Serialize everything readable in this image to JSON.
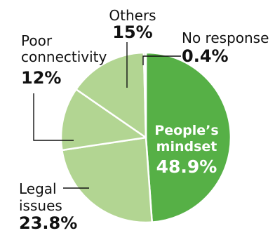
{
  "chart_data": {
    "type": "pie",
    "unit": "%",
    "slices": [
      {
        "name_lines": [
          "People’s",
          "mindset"
        ],
        "value": 48.9,
        "label": "48.9%",
        "color": "#56b046"
      },
      {
        "name_lines": [
          "Legal",
          "issues"
        ],
        "value": 23.8,
        "label": "23.8%",
        "color": "#b2d592"
      },
      {
        "name_lines": [
          "Poor",
          "connectivity"
        ],
        "value": 12,
        "label": "12%",
        "color": "#b2d592"
      },
      {
        "name_lines": [
          "Others"
        ],
        "value": 15,
        "label": "15%",
        "color": "#b2d592"
      },
      {
        "name_lines": [
          "No response"
        ],
        "value": 0.4,
        "label": "0.4%",
        "color": "#b2d592"
      }
    ],
    "slice_border_color": "#ffffff",
    "text_color": "#111111",
    "inside_label_color": "#ffffff"
  }
}
